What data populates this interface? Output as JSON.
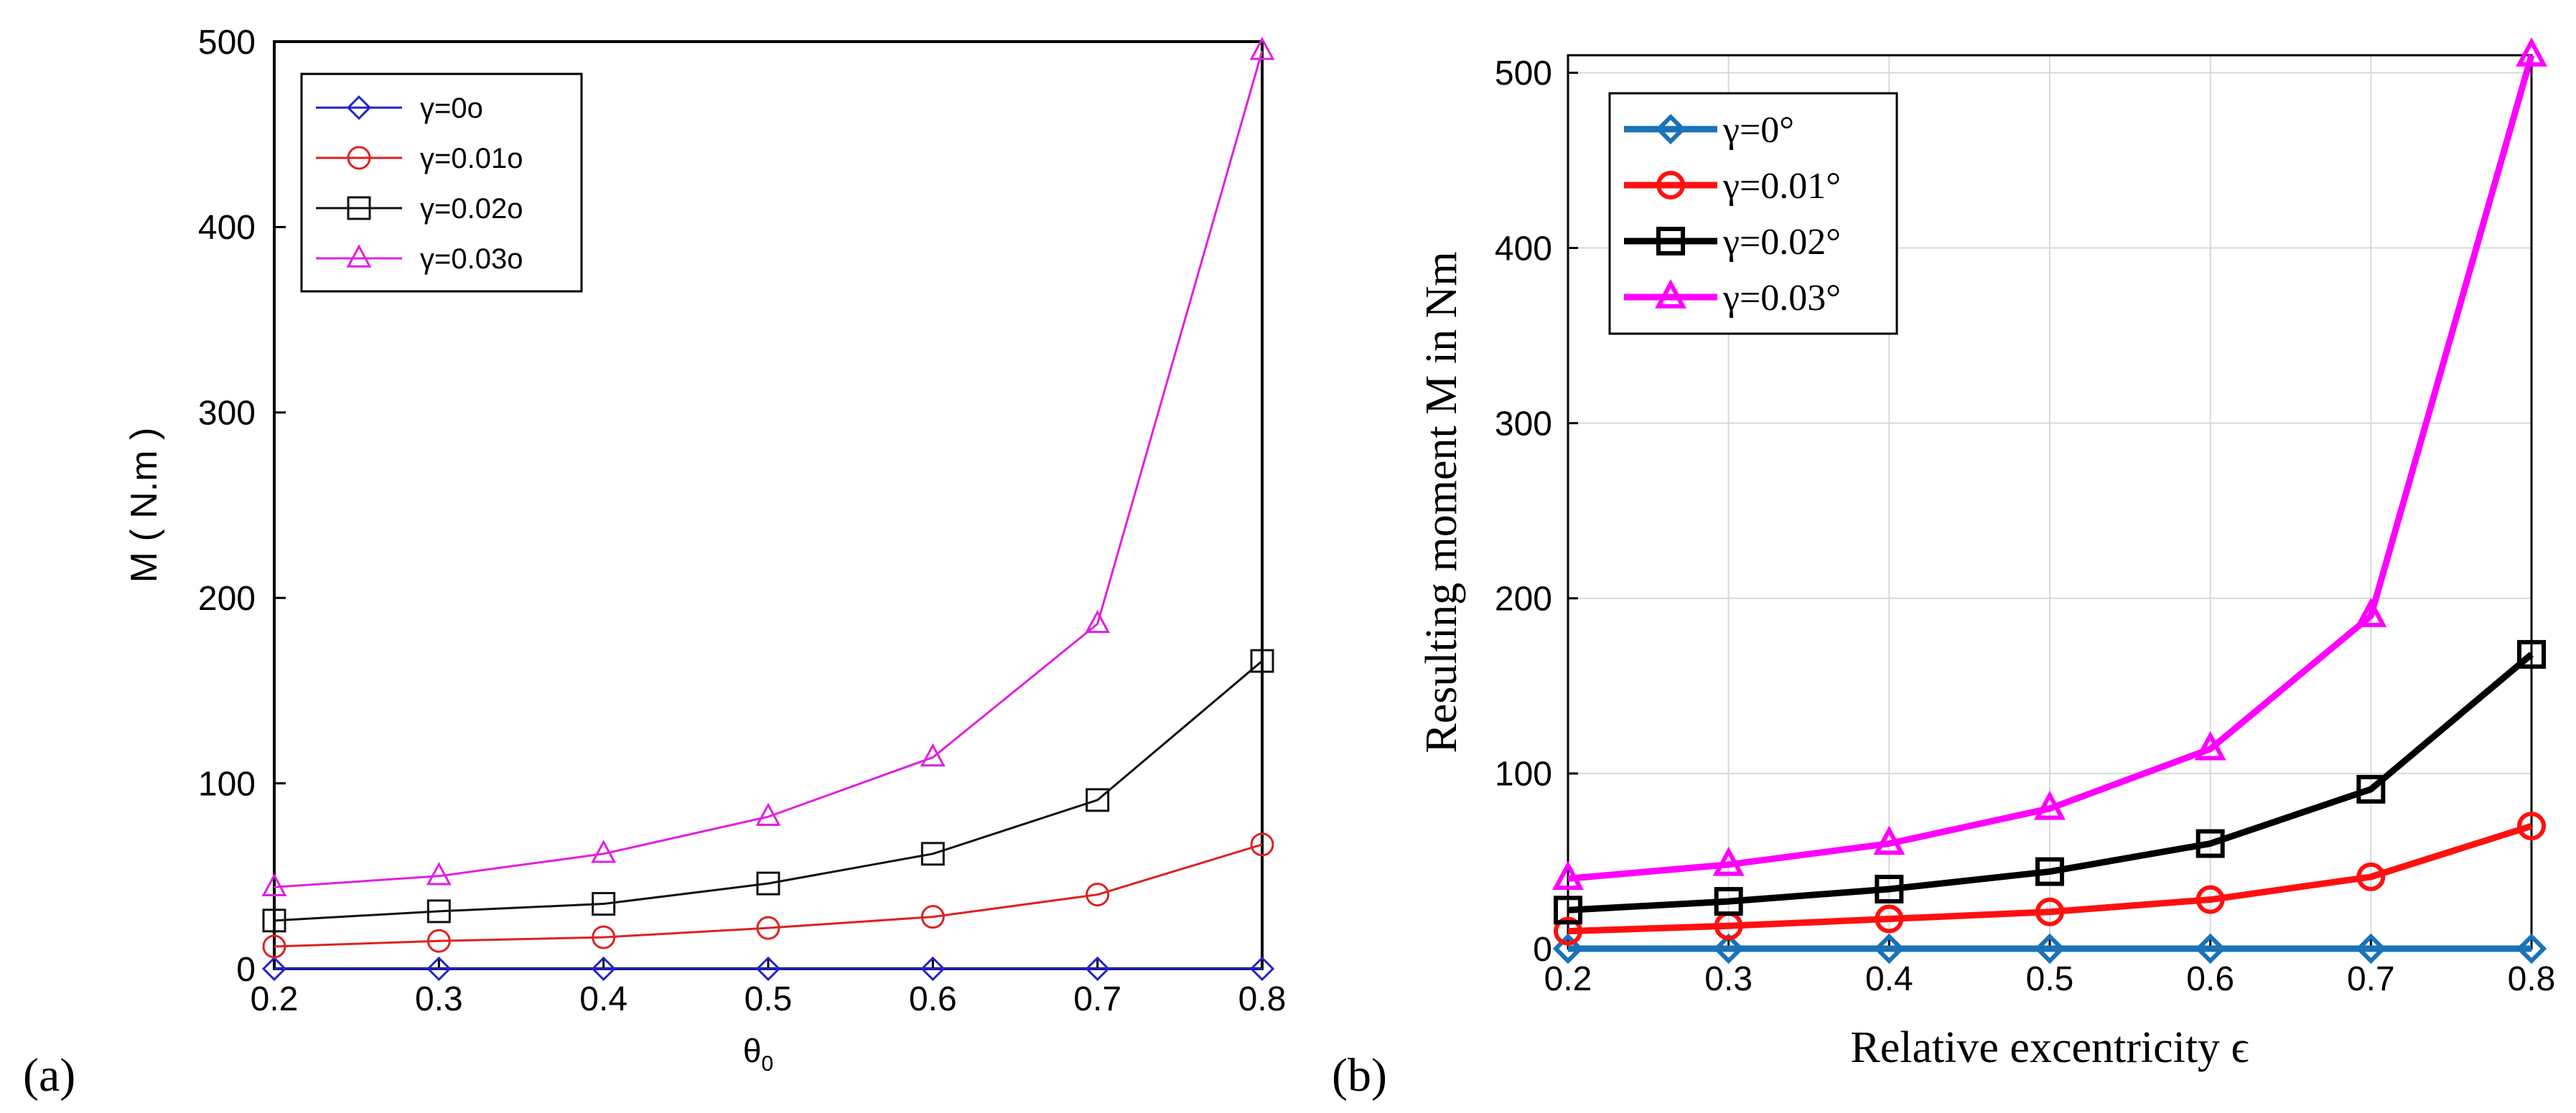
{
  "chart_data": [
    {
      "type": "line",
      "panel_label": "(a)",
      "title": "",
      "xlabel": "θ",
      "xlabel_sub": "0",
      "ylabel": "M ( N.m )",
      "x": [
        0.2,
        0.3,
        0.4,
        0.5,
        0.6,
        0.7,
        0.8
      ],
      "xlim": [
        0.2,
        0.8
      ],
      "ylim": [
        0,
        500
      ],
      "xticks": [
        "0.2",
        "0.3",
        "0.4",
        "0.5",
        "0.6",
        "0.7",
        "0.8"
      ],
      "yticks": [
        "0",
        "100",
        "200",
        "300",
        "400",
        "500"
      ],
      "grid": false,
      "legend_position": "top-left",
      "series": [
        {
          "name": "γ=0°",
          "label": "γ=0o",
          "color": "#2222cc",
          "marker": "diamond",
          "values": [
            0,
            0,
            0,
            0,
            0,
            0,
            0
          ]
        },
        {
          "name": "γ=0.01°",
          "label": "γ=0.01o",
          "color": "#dd2222",
          "marker": "circle",
          "values": [
            12,
            15,
            17,
            22,
            28,
            40,
            67
          ]
        },
        {
          "name": "γ=0.02°",
          "label": "γ=0.02o",
          "color": "#111111",
          "marker": "square",
          "values": [
            26,
            31,
            35,
            46,
            62,
            91,
            166
          ]
        },
        {
          "name": "γ=0.03°",
          "label": "γ=0.03o",
          "color": "#e020e0",
          "marker": "triangle",
          "values": [
            44,
            50,
            62,
            82,
            114,
            186,
            495
          ]
        }
      ]
    },
    {
      "type": "line",
      "panel_label": "(b)",
      "title": "",
      "xlabel": "Relative excentricity ϵ",
      "ylabel": "Resulting moment M in Nm",
      "x": [
        0.2,
        0.3,
        0.4,
        0.5,
        0.6,
        0.7,
        0.8
      ],
      "xlim": [
        0.2,
        0.8
      ],
      "ylim": [
        0,
        510
      ],
      "xticks": [
        "0.2",
        "0.3",
        "0.4",
        "0.5",
        "0.6",
        "0.7",
        "0.8"
      ],
      "yticks": [
        "0",
        "100",
        "200",
        "300",
        "400",
        "500"
      ],
      "grid": true,
      "legend_position": "top-left",
      "series": [
        {
          "name": "γ=0°",
          "label": "γ=0°",
          "color": "#1a72b8",
          "marker": "diamond",
          "values": [
            0,
            0,
            0,
            0,
            0,
            0,
            0
          ]
        },
        {
          "name": "γ=0.01°",
          "label": "γ=0.01°",
          "color": "#ff1010",
          "marker": "circle",
          "values": [
            10,
            13,
            17,
            21,
            28,
            41,
            70
          ]
        },
        {
          "name": "γ=0.02°",
          "label": "γ=0.02°",
          "color": "#000000",
          "marker": "square",
          "values": [
            22,
            27,
            34,
            44,
            60,
            91,
            168
          ]
        },
        {
          "name": "γ=0.03°",
          "label": "γ=0.03°",
          "color": "#ff00ff",
          "marker": "triangle",
          "values": [
            40,
            48,
            60,
            80,
            114,
            190,
            510
          ]
        }
      ]
    }
  ]
}
